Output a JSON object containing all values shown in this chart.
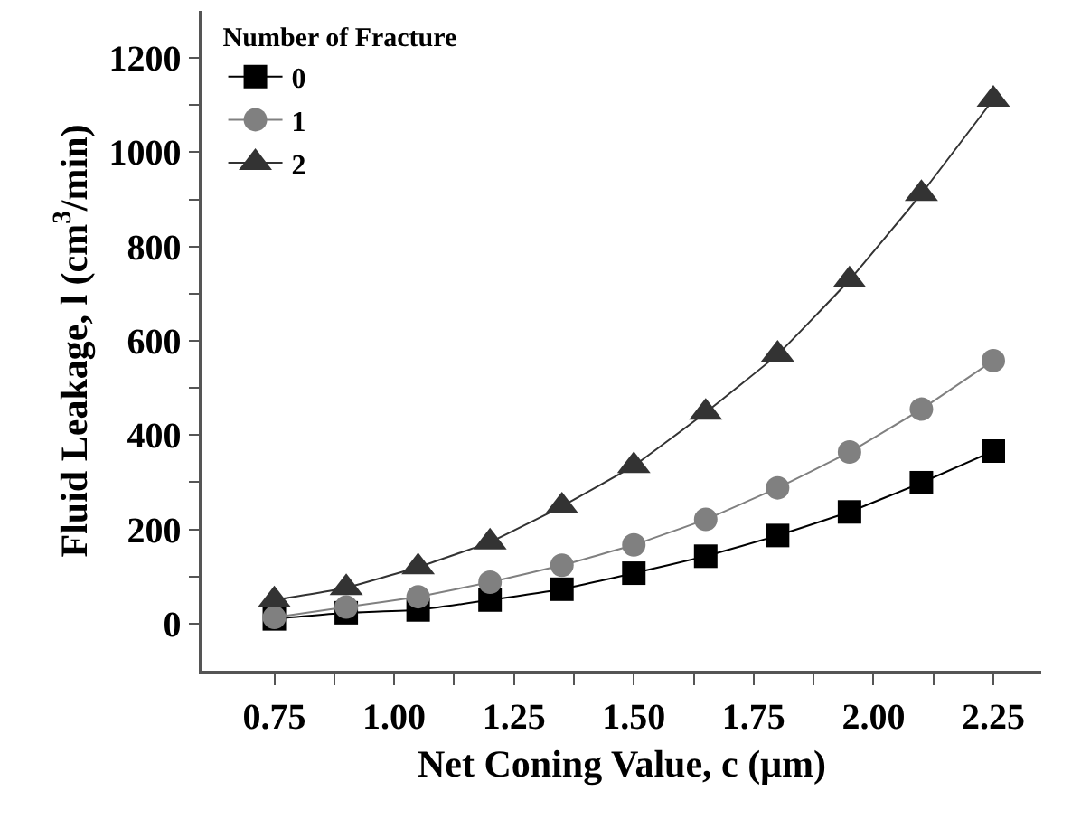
{
  "chart_data": {
    "type": "line",
    "xlabel": "Net Coning Value, c (μm)",
    "ylabel": "Fluid Leakage, l (cm$^{3}$/min)",
    "legend_title": "Number of Fracture",
    "x": [
      0.75,
      0.9,
      1.05,
      1.2,
      1.35,
      1.5,
      1.65,
      1.8,
      1.95,
      2.1,
      2.25
    ],
    "series": [
      {
        "name": "0",
        "color": "#000000",
        "marker": "square",
        "values": [
          10,
          23,
          29,
          50,
          73,
          107,
          143,
          187,
          237,
          299,
          366
        ]
      },
      {
        "name": "1",
        "color": "#808080",
        "marker": "circle",
        "values": [
          13,
          35,
          57,
          88,
          124,
          167,
          221,
          288,
          364,
          455,
          558
        ]
      },
      {
        "name": "2",
        "color": "#333333",
        "marker": "triangle",
        "values": [
          50,
          76,
          120,
          173,
          249,
          335,
          448,
          571,
          729,
          912,
          1112
        ]
      }
    ],
    "xlim": [
      0.6,
      2.35
    ],
    "xticks": [
      0.75,
      {
        "value": 0.875,
        "label": null
      },
      {
        "value": 1,
        "label": "1.00"
      },
      {
        "value": 1.125,
        "label": null
      },
      1.25,
      {
        "value": 1.375,
        "label": null
      },
      {
        "value": 1.5,
        "label": "1.50"
      },
      {
        "value": 1.625,
        "label": null
      },
      1.75,
      {
        "value": 1.875,
        "label": null
      },
      {
        "value": 2,
        "label": "2.00"
      },
      {
        "value": 2.125,
        "label": null
      },
      2.25
    ],
    "ylim": [
      -100,
      1300
    ],
    "yticks": [
      0,
      {
        "value": 100,
        "label": null
      },
      200,
      {
        "value": 300,
        "label": null
      },
      400,
      {
        "value": 500,
        "label": null
      },
      600,
      {
        "value": 700,
        "label": null
      },
      800,
      {
        "value": 900,
        "label": null
      },
      1000,
      {
        "value": 1100,
        "label": null
      },
      1200
    ],
    "grid": false,
    "legend": "top left",
    "line_style": "solid"
  }
}
